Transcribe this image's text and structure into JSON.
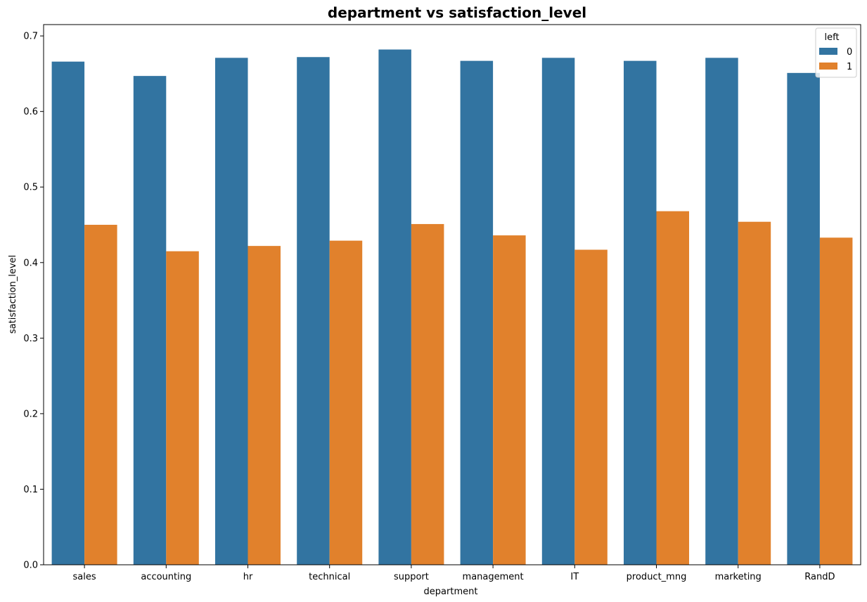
{
  "chart_data": {
    "type": "bar",
    "title": "department vs satisfaction_level",
    "xlabel": "department",
    "ylabel": "satisfaction_level",
    "categories": [
      "sales",
      "accounting",
      "hr",
      "technical",
      "support",
      "management",
      "IT",
      "product_mng",
      "marketing",
      "RandD"
    ],
    "series": [
      {
        "name": "0",
        "color": "#3274a1",
        "values": [
          0.666,
          0.647,
          0.671,
          0.672,
          0.682,
          0.667,
          0.671,
          0.667,
          0.671,
          0.651
        ]
      },
      {
        "name": "1",
        "color": "#e1812c",
        "values": [
          0.45,
          0.415,
          0.422,
          0.429,
          0.451,
          0.436,
          0.417,
          0.468,
          0.454,
          0.433
        ]
      }
    ],
    "legend": {
      "title": "left",
      "placement": "top-right"
    },
    "ylim": [
      0,
      0.715
    ],
    "yticks": [
      0.0,
      0.1,
      0.2,
      0.3,
      0.4,
      0.5,
      0.6,
      0.7
    ],
    "ytick_labels": [
      "0.0",
      "0.1",
      "0.2",
      "0.3",
      "0.4",
      "0.5",
      "0.6",
      "0.7"
    ],
    "grid": false
  }
}
